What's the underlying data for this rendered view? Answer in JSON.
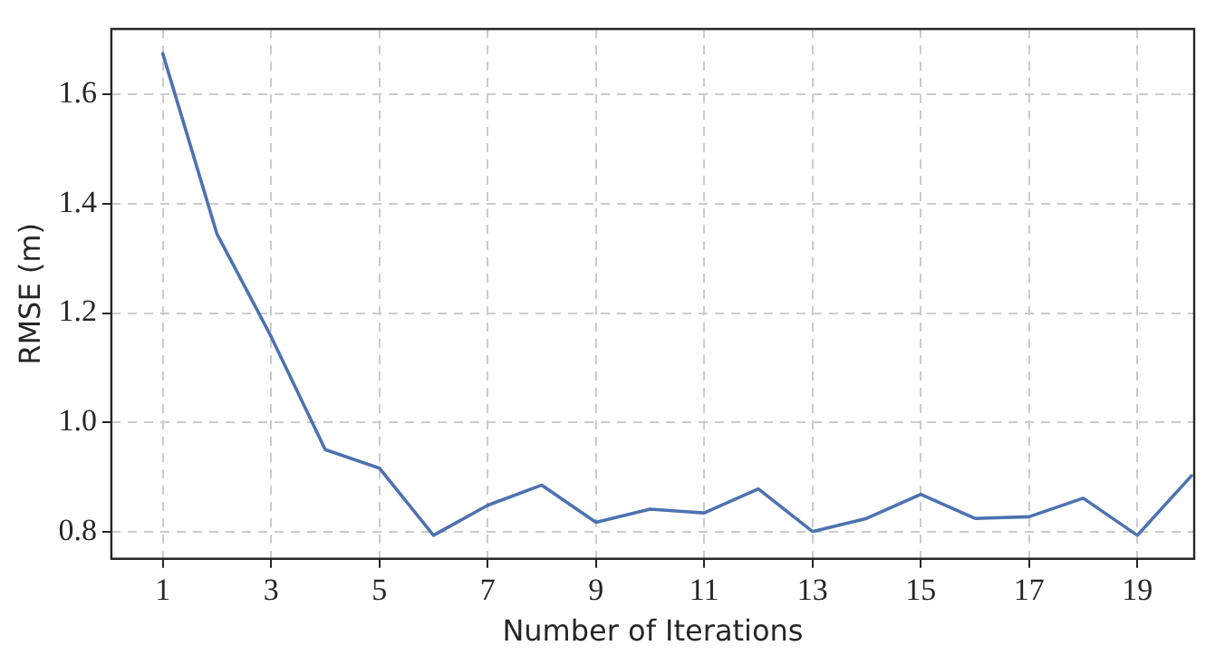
{
  "chart_data": {
    "type": "line",
    "xlabel": "Number of Iterations",
    "ylabel": "RMSE (m)",
    "x": [
      1,
      2,
      3,
      4,
      5,
      6,
      7,
      8,
      9,
      10,
      11,
      12,
      13,
      14,
      15,
      16,
      17,
      18,
      19,
      20
    ],
    "series": [
      {
        "color": "#4c72b0",
        "values": [
          1.675,
          1.345,
          1.157,
          0.95,
          0.916,
          0.793,
          0.848,
          0.885,
          0.817,
          0.841,
          0.834,
          0.878,
          0.8,
          0.824,
          0.868,
          0.824,
          0.827,
          0.861,
          0.793,
          0.902
        ]
      }
    ],
    "xlim": [
      0.05,
      20.05
    ],
    "ylim": [
      0.75,
      1.72
    ],
    "xticks": [
      1,
      3,
      5,
      7,
      9,
      11,
      13,
      15,
      17,
      19
    ],
    "yticks": [
      0.8,
      {
        "value": 1.0,
        "label": "1.0"
      },
      1.2,
      1.4,
      1.6
    ],
    "grid": true,
    "legend": false,
    "marker": "none",
    "line_style": "solid"
  }
}
